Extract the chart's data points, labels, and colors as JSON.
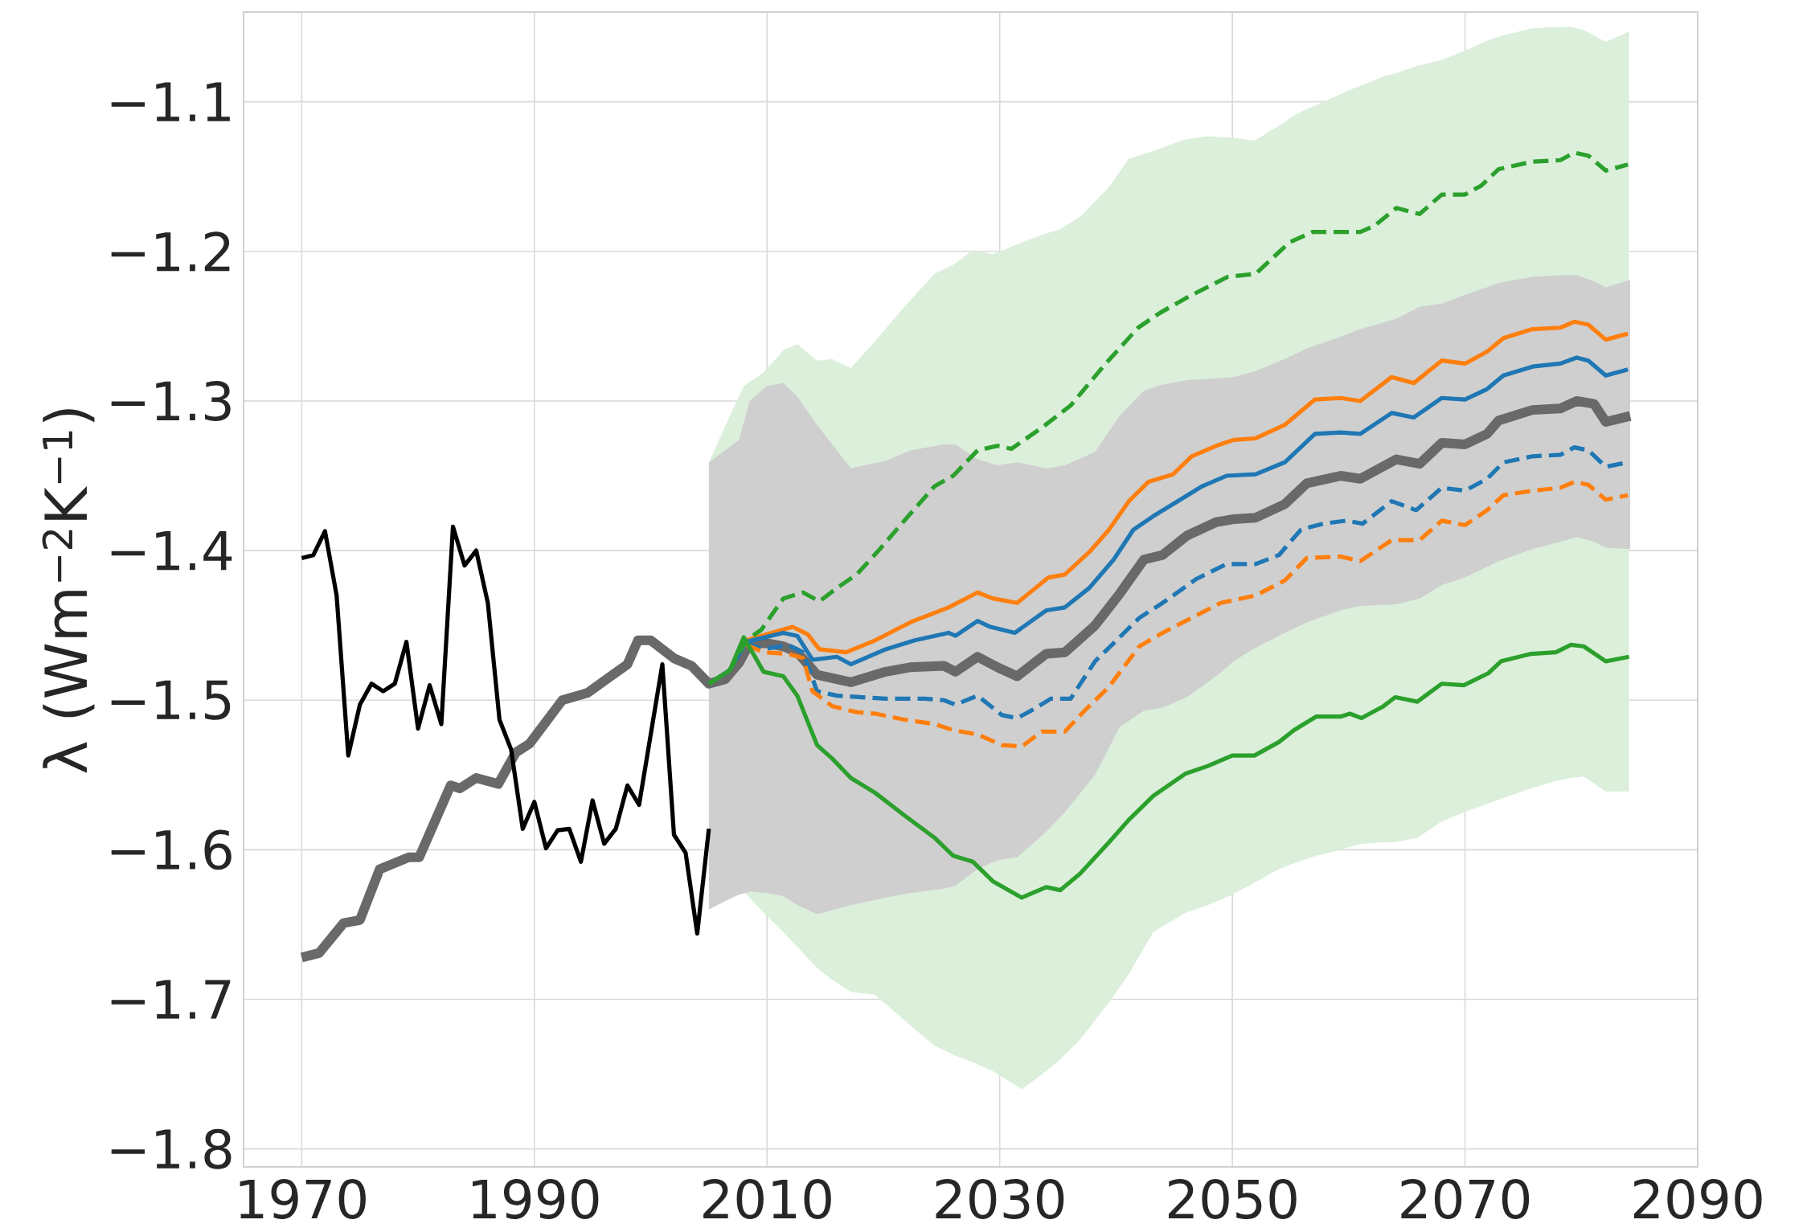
{
  "chart_data": {
    "type": "line",
    "ylabel": "λ (Wm$^{−2}$K$^{−1}$)",
    "xlim": [
      1965,
      2090
    ],
    "ylim": [
      -1.812,
      -1.04
    ],
    "xticks": [
      1970,
      1990,
      2010,
      2030,
      2050,
      2070,
      2090
    ],
    "yticks": [
      {
        "value": -1.8,
        "label": "−1.8"
      },
      {
        "value": -1.7,
        "label": "−1.7"
      },
      {
        "value": -1.6,
        "label": "−1.6"
      },
      {
        "value": -1.5,
        "label": "−1.5"
      },
      {
        "value": -1.4,
        "label": "−1.4"
      },
      {
        "value": -1.3,
        "label": "−1.3"
      },
      {
        "value": -1.2,
        "label": "−1.2"
      },
      {
        "value": -1.1,
        "label": "−1.1"
      }
    ],
    "grid": true,
    "series": [
      {
        "color": "#696969",
        "x": [
          1970,
          1971.5,
          1973.6,
          1975,
          1976.7,
          1979.2,
          1980.1,
          1982.8,
          1983.6,
          1985,
          1986.9,
          1988.4,
          1989.6,
          1992.4,
          1994.6,
          1998,
          1998.9,
          2000,
          2002,
          2003.5,
          2005,
          2006.4,
          2007.6,
          2008.5,
          2010,
          2011.4,
          2012.6,
          2014.3,
          2017.2,
          2020.2,
          2022.3,
          2025.2,
          2026.2,
          2028.1,
          2029.8,
          2031.5,
          2034,
          2035.6,
          2038.2,
          2040.3,
          2042.4,
          2044,
          2046.1,
          2048.6,
          2050.1,
          2052,
          2054.5,
          2056.4,
          2059.3,
          2061,
          2064.1,
          2066.1,
          2068,
          2070,
          2071.9,
          2072.9,
          2075.8,
          2078.2,
          2079.6,
          2081.1,
          2082.1,
          2084.2
        ],
        "values": [
          -1.672,
          -1.669,
          -1.649,
          -1.647,
          -1.613,
          -1.605,
          -1.605,
          -1.557,
          -1.559,
          -1.552,
          -1.556,
          -1.535,
          -1.529,
          -1.5,
          -1.495,
          -1.476,
          -1.46,
          -1.46,
          -1.472,
          -1.477,
          -1.489,
          -1.486,
          -1.475,
          -1.462,
          -1.462,
          -1.464,
          -1.468,
          -1.483,
          -1.488,
          -1.481,
          -1.478,
          -1.477,
          -1.481,
          -1.471,
          -1.478,
          -1.484,
          -1.469,
          -1.468,
          -1.45,
          -1.429,
          -1.406,
          -1.403,
          -1.39,
          -1.381,
          -1.379,
          -1.378,
          -1.369,
          -1.355,
          -1.35,
          -1.352,
          -1.339,
          -1.342,
          -1.328,
          -1.329,
          -1.322,
          -1.313,
          -1.306,
          -1.305,
          -1.3,
          -1.302,
          -1.314,
          -1.31
        ],
        "upper": [
          null,
          null,
          null,
          null,
          null,
          null,
          null,
          null,
          null,
          null,
          null,
          null,
          null,
          null,
          null,
          null,
          null,
          null,
          null,
          null,
          -1.341,
          -1.333,
          -1.326,
          -1.3,
          -1.29,
          -1.288,
          -1.297,
          -1.316,
          -1.345,
          -1.34,
          -1.333,
          -1.329,
          -1.329,
          -1.339,
          -1.343,
          -1.341,
          -1.345,
          -1.343,
          -1.334,
          -1.31,
          -1.293,
          -1.289,
          -1.286,
          -1.285,
          -1.284,
          -1.28,
          -1.272,
          -1.265,
          -1.257,
          -1.252,
          -1.245,
          -1.237,
          -1.235,
          -1.229,
          -1.224,
          -1.221,
          -1.217,
          -1.216,
          -1.216,
          -1.22,
          -1.224,
          -1.219
        ],
        "lower": [
          null,
          null,
          null,
          null,
          null,
          null,
          null,
          null,
          null,
          null,
          null,
          null,
          null,
          null,
          null,
          null,
          null,
          null,
          null,
          null,
          -1.64,
          -1.634,
          -1.63,
          -1.628,
          -1.629,
          -1.631,
          -1.637,
          -1.643,
          -1.637,
          -1.632,
          -1.629,
          -1.626,
          -1.624,
          -1.613,
          -1.607,
          -1.605,
          -1.588,
          -1.575,
          -1.55,
          -1.518,
          -1.507,
          -1.505,
          -1.498,
          -1.484,
          -1.474,
          -1.465,
          -1.455,
          -1.448,
          -1.44,
          -1.437,
          -1.436,
          -1.432,
          -1.423,
          -1.418,
          -1.411,
          -1.407,
          -1.399,
          -1.394,
          -1.391,
          -1.394,
          -1.398,
          -1.399
        ]
      },
      {
        "color": "#000000",
        "x": [
          1970,
          1971,
          1972,
          1973,
          1974,
          1975,
          1976,
          1977,
          1978,
          1979,
          1980,
          1981,
          1982,
          1983,
          1984,
          1985,
          1986,
          1987,
          1988,
          1989,
          1990,
          1991,
          1992,
          1993,
          1994,
          1995,
          1996,
          1997,
          1998,
          1999,
          2000,
          2001,
          2002,
          2003,
          2004,
          2005
        ],
        "values": [
          -1.405,
          -1.403,
          -1.387,
          -1.43,
          -1.537,
          -1.503,
          -1.489,
          -1.494,
          -1.489,
          -1.461,
          -1.519,
          -1.49,
          -1.516,
          -1.384,
          -1.41,
          -1.4,
          -1.435,
          -1.513,
          -1.533,
          -1.586,
          -1.568,
          -1.599,
          -1.587,
          -1.586,
          -1.608,
          -1.567,
          -1.596,
          -1.586,
          -1.557,
          -1.57,
          -1.523,
          -1.476,
          -1.59,
          -1.602,
          -1.656,
          -1.586
        ]
      },
      {
        "color": "#ff7f0e",
        "x": [
          2008.2,
          2012.2,
          2013.5,
          2014.5,
          2016.8,
          2019.3,
          2022.3,
          2025.6,
          2028.1,
          2029.4,
          2031.5,
          2034.2,
          2035.6,
          2037.7,
          2039.4,
          2041.1,
          2042.8,
          2044.9,
          2046.5,
          2048.6,
          2050.1,
          2052,
          2054.5,
          2057.1,
          2059.3,
          2061,
          2063.7,
          2065.6,
          2068,
          2070,
          2071.9,
          2073.3,
          2075.8,
          2078.2,
          2079.4,
          2080.6,
          2082.1,
          2084
        ],
        "values": [
          -1.46,
          -1.451,
          -1.456,
          -1.466,
          -1.468,
          -1.46,
          -1.448,
          -1.438,
          -1.428,
          -1.432,
          -1.435,
          -1.418,
          -1.416,
          -1.401,
          -1.386,
          -1.367,
          -1.354,
          -1.349,
          -1.337,
          -1.33,
          -1.326,
          -1.325,
          -1.316,
          -1.299,
          -1.298,
          -1.3,
          -1.284,
          -1.288,
          -1.273,
          -1.275,
          -1.267,
          -1.258,
          -1.252,
          -1.251,
          -1.247,
          -1.249,
          -1.259,
          -1.255
        ]
      },
      {
        "color": "#1f77b4",
        "x": [
          2005,
          2006.8,
          2008.2,
          2011.4,
          2012.6,
          2013.9,
          2016,
          2017.2,
          2020.2,
          2022.7,
          2025.6,
          2026.2,
          2028.1,
          2029.2,
          2031.3,
          2034,
          2035.6,
          2037.7,
          2039.8,
          2041.5,
          2043.2,
          2045.3,
          2047.4,
          2049.5,
          2052,
          2054.5,
          2057.1,
          2059.3,
          2061,
          2063.7,
          2065.6,
          2068,
          2070,
          2071.9,
          2073.3,
          2075.8,
          2078.2,
          2079.6,
          2080.6,
          2082.1,
          2084
        ],
        "values": [
          -1.489,
          -1.48,
          -1.461,
          -1.455,
          -1.457,
          -1.473,
          -1.471,
          -1.476,
          -1.466,
          -1.46,
          -1.455,
          -1.457,
          -1.447,
          -1.451,
          -1.455,
          -1.44,
          -1.438,
          -1.425,
          -1.406,
          -1.386,
          -1.377,
          -1.367,
          -1.357,
          -1.35,
          -1.349,
          -1.341,
          -1.322,
          -1.321,
          -1.322,
          -1.308,
          -1.311,
          -1.298,
          -1.299,
          -1.292,
          -1.283,
          -1.277,
          -1.275,
          -1.271,
          -1.273,
          -1.283,
          -1.279
        ]
      },
      {
        "line_style": "dashed",
        "color": "#1f77b4",
        "x": [
          2008.2,
          2009.7,
          2011.8,
          2013.1,
          2014.3,
          2016,
          2020.2,
          2023.5,
          2025.2,
          2026.2,
          2028.1,
          2030.2,
          2031.5,
          2032.7,
          2034.4,
          2036.1,
          2038.2,
          2040.3,
          2042,
          2044,
          2046.9,
          2049.5,
          2052,
          2054,
          2055.9,
          2057.8,
          2059.8,
          2061.2,
          2063.7,
          2065.8,
          2068,
          2070,
          2071.9,
          2073.3,
          2075.8,
          2078.2,
          2079.4,
          2080.6,
          2082.1,
          2084
        ],
        "values": [
          -1.462,
          -1.466,
          -1.463,
          -1.468,
          -1.494,
          -1.497,
          -1.499,
          -1.499,
          -1.5,
          -1.503,
          -1.497,
          -1.51,
          -1.512,
          -1.507,
          -1.499,
          -1.499,
          -1.474,
          -1.458,
          -1.445,
          -1.435,
          -1.419,
          -1.409,
          -1.409,
          -1.403,
          -1.386,
          -1.382,
          -1.38,
          -1.382,
          -1.367,
          -1.373,
          -1.358,
          -1.36,
          -1.352,
          -1.341,
          -1.337,
          -1.336,
          -1.331,
          -1.333,
          -1.344,
          -1.341
        ]
      },
      {
        "line_style": "dashed",
        "color": "#ff7f0e",
        "x": [
          2008.2,
          2009.7,
          2011.8,
          2013.1,
          2013.9,
          2015.6,
          2017.7,
          2019.3,
          2021.8,
          2024.4,
          2026,
          2028.1,
          2030.2,
          2031.9,
          2033.6,
          2035.6,
          2037.3,
          2039.4,
          2042,
          2044,
          2046.5,
          2049,
          2052,
          2054.5,
          2056.4,
          2059.3,
          2061,
          2063.7,
          2066.1,
          2068,
          2070,
          2071.9,
          2073.3,
          2075.8,
          2078.2,
          2079.4,
          2080.6,
          2082.1,
          2084
        ],
        "values": [
          -1.463,
          -1.468,
          -1.469,
          -1.472,
          -1.494,
          -1.504,
          -1.508,
          -1.509,
          -1.513,
          -1.516,
          -1.52,
          -1.523,
          -1.53,
          -1.531,
          -1.521,
          -1.521,
          -1.507,
          -1.491,
          -1.464,
          -1.455,
          -1.445,
          -1.435,
          -1.43,
          -1.42,
          -1.405,
          -1.404,
          -1.407,
          -1.393,
          -1.393,
          -1.38,
          -1.383,
          -1.373,
          -1.363,
          -1.36,
          -1.358,
          -1.354,
          -1.356,
          -1.366,
          -1.363
        ]
      },
      {
        "line_style": "dashed",
        "color": "#2ca02c",
        "x": [
          2005,
          2006.8,
          2008.2,
          2009.5,
          2011.4,
          2013.1,
          2014.5,
          2016,
          2017.7,
          2019.7,
          2021.8,
          2024.4,
          2026,
          2028.1,
          2029.8,
          2031,
          2033.6,
          2036.1,
          2039,
          2041.9,
          2043.8,
          2046.3,
          2049.6,
          2052,
          2054.9,
          2056.9,
          2061,
          2062.2,
          2064.1,
          2066.1,
          2068,
          2070,
          2071.4,
          2072.9,
          2075.8,
          2078.2,
          2079.4,
          2080.6,
          2082.1,
          2084
        ],
        "values": [
          -1.489,
          -1.48,
          -1.46,
          -1.453,
          -1.432,
          -1.428,
          -1.434,
          -1.425,
          -1.416,
          -1.399,
          -1.38,
          -1.357,
          -1.35,
          -1.333,
          -1.33,
          -1.332,
          -1.318,
          -1.303,
          -1.276,
          -1.251,
          -1.241,
          -1.23,
          -1.217,
          -1.215,
          -1.194,
          -1.187,
          -1.187,
          -1.183,
          -1.171,
          -1.175,
          -1.162,
          -1.162,
          -1.156,
          -1.145,
          -1.14,
          -1.139,
          -1.134,
          -1.136,
          -1.146,
          -1.142
        ]
      },
      {
        "color": "#2ca02c",
        "x": [
          2005,
          2006.8,
          2008,
          2009.7,
          2011.4,
          2012.6,
          2014.3,
          2015.6,
          2017.2,
          2019.3,
          2021.8,
          2024.4,
          2026,
          2027.7,
          2029.4,
          2031.9,
          2034,
          2035.2,
          2036.9,
          2039.4,
          2041.1,
          2043.2,
          2046,
          2047.9,
          2050,
          2051.9,
          2054,
          2055.3,
          2057.2,
          2059.3,
          2060.1,
          2061.1,
          2063,
          2064,
          2065.9,
          2068,
          2069.9,
          2072,
          2073.1,
          2075.7,
          2077.8,
          2079.1,
          2080.2,
          2082.1,
          2084.1
        ],
        "values": [
          -1.489,
          -1.48,
          -1.458,
          -1.481,
          -1.484,
          -1.497,
          -1.53,
          -1.539,
          -1.552,
          -1.562,
          -1.577,
          -1.592,
          -1.604,
          -1.608,
          -1.621,
          -1.632,
          -1.625,
          -1.627,
          -1.616,
          -1.595,
          -1.58,
          -1.564,
          -1.549,
          -1.544,
          -1.537,
          -1.537,
          -1.528,
          -1.52,
          -1.511,
          -1.511,
          -1.509,
          -1.512,
          -1.504,
          -1.498,
          -1.501,
          -1.489,
          -1.49,
          -1.482,
          -1.474,
          -1.469,
          -1.468,
          -1.463,
          -1.464,
          -1.474,
          -1.471
        ],
        "upper": [
          -1.341,
          -1.31,
          -1.29,
          -1.281,
          -1.266,
          -1.262,
          -1.273,
          -1.272,
          -1.278,
          -1.26,
          -1.237,
          -1.215,
          -1.209,
          -1.199,
          -1.202,
          -1.194,
          -1.188,
          -1.185,
          -1.177,
          -1.157,
          -1.138,
          -1.133,
          -1.125,
          -1.123,
          -1.124,
          -1.126,
          -1.116,
          -1.109,
          -1.102,
          -1.095,
          -1.092,
          -1.089,
          -1.083,
          -1.081,
          -1.076,
          -1.072,
          -1.066,
          -1.059,
          -1.056,
          -1.051,
          -1.05,
          -1.05,
          -1.052,
          -1.06,
          -1.053
        ],
        "lower": [
          -1.64,
          -1.633,
          -1.628,
          -1.642,
          -1.655,
          -1.665,
          -1.679,
          -1.687,
          -1.695,
          -1.697,
          -1.714,
          -1.731,
          -1.737,
          -1.742,
          -1.748,
          -1.76,
          -1.748,
          -1.74,
          -1.727,
          -1.702,
          -1.683,
          -1.655,
          -1.642,
          -1.637,
          -1.63,
          -1.622,
          -1.613,
          -1.609,
          -1.604,
          -1.6,
          -1.598,
          -1.596,
          -1.595,
          -1.595,
          -1.592,
          -1.581,
          -1.575,
          -1.569,
          -1.566,
          -1.559,
          -1.554,
          -1.552,
          -1.551,
          -1.561,
          -1.561
        ]
      }
    ]
  }
}
